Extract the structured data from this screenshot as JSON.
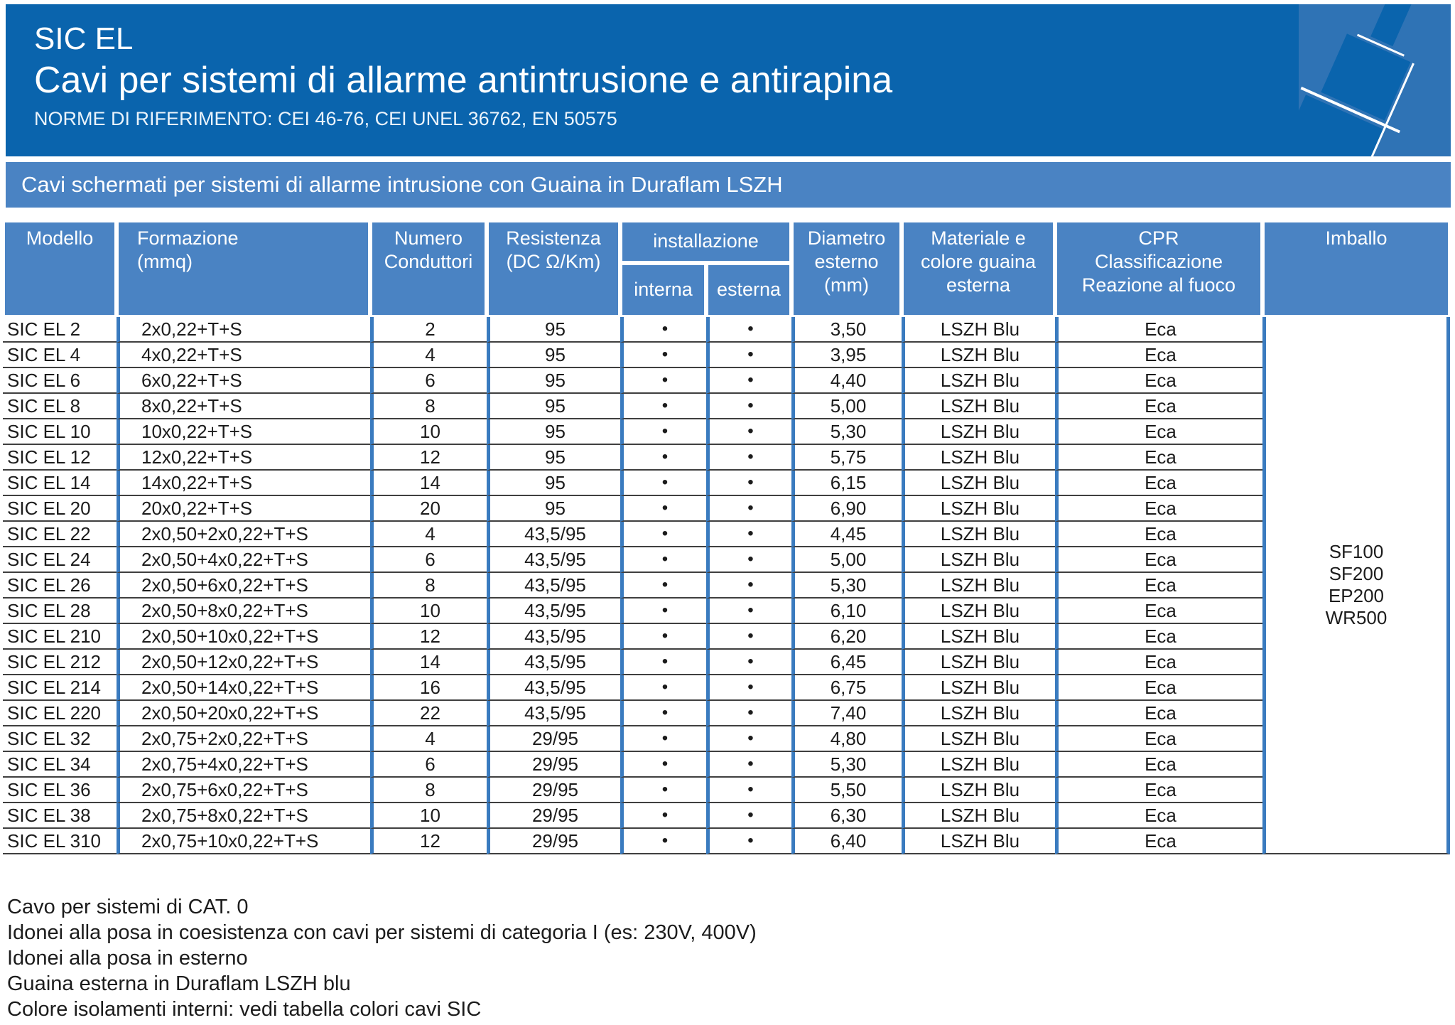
{
  "colors": {
    "header_blue": "#0a64ad",
    "band_blue": "#4a83c3",
    "panel_blue": "#2f73b5",
    "grid_line_blue": "#3a7bbf",
    "row_line_dark": "#3f3f3f"
  },
  "header": {
    "product": "SIC EL",
    "title": "Cavi per sistemi di allarme antintrusione e antirapina",
    "norms": "NORME DI RIFERIMENTO: CEI 46-76, CEI UNEL 36762, EN 50575"
  },
  "section_banner": "Cavi schermati per sistemi di allarme intrusione con Guaina in Duraflam LSZH",
  "table": {
    "headers": {
      "modello": "Modello",
      "formazione": "Formazione\n(mmq)",
      "conduttori": "Numero\nConduttori",
      "resistenza": "Resistenza\n(DC Ω/Km)",
      "installazione": "installazione",
      "interna": "interna",
      "esterna": "esterna",
      "diametro": "Diametro\nesterno\n(mm)",
      "guaina": "Materiale e\ncolore guaina\nesterna",
      "cpr": "CPR\nClassificazione\nReazione al fuoco",
      "imballo": "Imballo"
    },
    "bullet": "•",
    "imballo_codes": "SF100\nSF200\nEP200\nWR500",
    "rows": [
      {
        "modello": "SIC EL 2",
        "formazione": "2x0,22+T+S",
        "conduttori": "2",
        "resistenza": "95",
        "interna": true,
        "esterna": true,
        "diametro": "3,50",
        "guaina": "LSZH Blu",
        "cpr": "Eca"
      },
      {
        "modello": "SIC EL 4",
        "formazione": "4x0,22+T+S",
        "conduttori": "4",
        "resistenza": "95",
        "interna": true,
        "esterna": true,
        "diametro": "3,95",
        "guaina": "LSZH Blu",
        "cpr": "Eca"
      },
      {
        "modello": "SIC EL 6",
        "formazione": "6x0,22+T+S",
        "conduttori": "6",
        "resistenza": "95",
        "interna": true,
        "esterna": true,
        "diametro": "4,40",
        "guaina": "LSZH Blu",
        "cpr": "Eca"
      },
      {
        "modello": "SIC EL 8",
        "formazione": "8x0,22+T+S",
        "conduttori": "8",
        "resistenza": "95",
        "interna": true,
        "esterna": true,
        "diametro": "5,00",
        "guaina": "LSZH Blu",
        "cpr": "Eca"
      },
      {
        "modello": "SIC EL 10",
        "formazione": "10x0,22+T+S",
        "conduttori": "10",
        "resistenza": "95",
        "interna": true,
        "esterna": true,
        "diametro": "5,30",
        "guaina": "LSZH Blu",
        "cpr": "Eca"
      },
      {
        "modello": "SIC EL 12",
        "formazione": "12x0,22+T+S",
        "conduttori": "12",
        "resistenza": "95",
        "interna": true,
        "esterna": true,
        "diametro": "5,75",
        "guaina": "LSZH Blu",
        "cpr": "Eca"
      },
      {
        "modello": "SIC EL 14",
        "formazione": "14x0,22+T+S",
        "conduttori": "14",
        "resistenza": "95",
        "interna": true,
        "esterna": true,
        "diametro": "6,15",
        "guaina": "LSZH Blu",
        "cpr": "Eca"
      },
      {
        "modello": "SIC EL 20",
        "formazione": "20x0,22+T+S",
        "conduttori": "20",
        "resistenza": "95",
        "interna": true,
        "esterna": true,
        "diametro": "6,90",
        "guaina": "LSZH Blu",
        "cpr": "Eca"
      },
      {
        "modello": "SIC EL 22",
        "formazione": "2x0,50+2x0,22+T+S",
        "conduttori": "4",
        "resistenza": "43,5/95",
        "interna": true,
        "esterna": true,
        "diametro": "4,45",
        "guaina": "LSZH Blu",
        "cpr": "Eca"
      },
      {
        "modello": "SIC EL 24",
        "formazione": "2x0,50+4x0,22+T+S",
        "conduttori": "6",
        "resistenza": "43,5/95",
        "interna": true,
        "esterna": true,
        "diametro": "5,00",
        "guaina": "LSZH Blu",
        "cpr": "Eca"
      },
      {
        "modello": "SIC EL 26",
        "formazione": "2x0,50+6x0,22+T+S",
        "conduttori": "8",
        "resistenza": "43,5/95",
        "interna": true,
        "esterna": true,
        "diametro": "5,30",
        "guaina": "LSZH Blu",
        "cpr": "Eca"
      },
      {
        "modello": "SIC EL 28",
        "formazione": "2x0,50+8x0,22+T+S",
        "conduttori": "10",
        "resistenza": "43,5/95",
        "interna": true,
        "esterna": true,
        "diametro": "6,10",
        "guaina": "LSZH Blu",
        "cpr": "Eca"
      },
      {
        "modello": "SIC EL 210",
        "formazione": "2x0,50+10x0,22+T+S",
        "conduttori": "12",
        "resistenza": "43,5/95",
        "interna": true,
        "esterna": true,
        "diametro": "6,20",
        "guaina": "LSZH Blu",
        "cpr": "Eca"
      },
      {
        "modello": "SIC EL 212",
        "formazione": "2x0,50+12x0,22+T+S",
        "conduttori": "14",
        "resistenza": "43,5/95",
        "interna": true,
        "esterna": true,
        "diametro": "6,45",
        "guaina": "LSZH Blu",
        "cpr": "Eca"
      },
      {
        "modello": "SIC EL 214",
        "formazione": "2x0,50+14x0,22+T+S",
        "conduttori": "16",
        "resistenza": "43,5/95",
        "interna": true,
        "esterna": true,
        "diametro": "6,75",
        "guaina": "LSZH Blu",
        "cpr": "Eca"
      },
      {
        "modello": "SIC EL 220",
        "formazione": "2x0,50+20x0,22+T+S",
        "conduttori": "22",
        "resistenza": "43,5/95",
        "interna": true,
        "esterna": true,
        "diametro": "7,40",
        "guaina": "LSZH Blu",
        "cpr": "Eca"
      },
      {
        "modello": "SIC EL 32",
        "formazione": "2x0,75+2x0,22+T+S",
        "conduttori": "4",
        "resistenza": "29/95",
        "interna": true,
        "esterna": true,
        "diametro": "4,80",
        "guaina": "LSZH Blu",
        "cpr": "Eca"
      },
      {
        "modello": "SIC EL 34",
        "formazione": "2x0,75+4x0,22+T+S",
        "conduttori": "6",
        "resistenza": "29/95",
        "interna": true,
        "esterna": true,
        "diametro": "5,30",
        "guaina": "LSZH Blu",
        "cpr": "Eca"
      },
      {
        "modello": "SIC EL 36",
        "formazione": "2x0,75+6x0,22+T+S",
        "conduttori": "8",
        "resistenza": "29/95",
        "interna": true,
        "esterna": true,
        "diametro": "5,50",
        "guaina": "LSZH Blu",
        "cpr": "Eca"
      },
      {
        "modello": "SIC EL 38",
        "formazione": "2x0,75+8x0,22+T+S",
        "conduttori": "10",
        "resistenza": "29/95",
        "interna": true,
        "esterna": true,
        "diametro": "6,30",
        "guaina": "LSZH Blu",
        "cpr": "Eca"
      },
      {
        "modello": "SIC EL 310",
        "formazione": "2x0,75+10x0,22+T+S",
        "conduttori": "12",
        "resistenza": "29/95",
        "interna": true,
        "esterna": true,
        "diametro": "6,40",
        "guaina": "LSZH Blu",
        "cpr": "Eca"
      }
    ]
  },
  "notes": [
    "Cavo per sistemi di CAT. 0",
    "Idonei alla posa in coesistenza con cavi per sistemi di categoria I (es: 230V, 400V)",
    "Idonei alla posa in esterno",
    "Guaina esterna in Duraflam LSZH blu",
    "Colore isolamenti interni: vedi tabella colori cavi SIC"
  ]
}
